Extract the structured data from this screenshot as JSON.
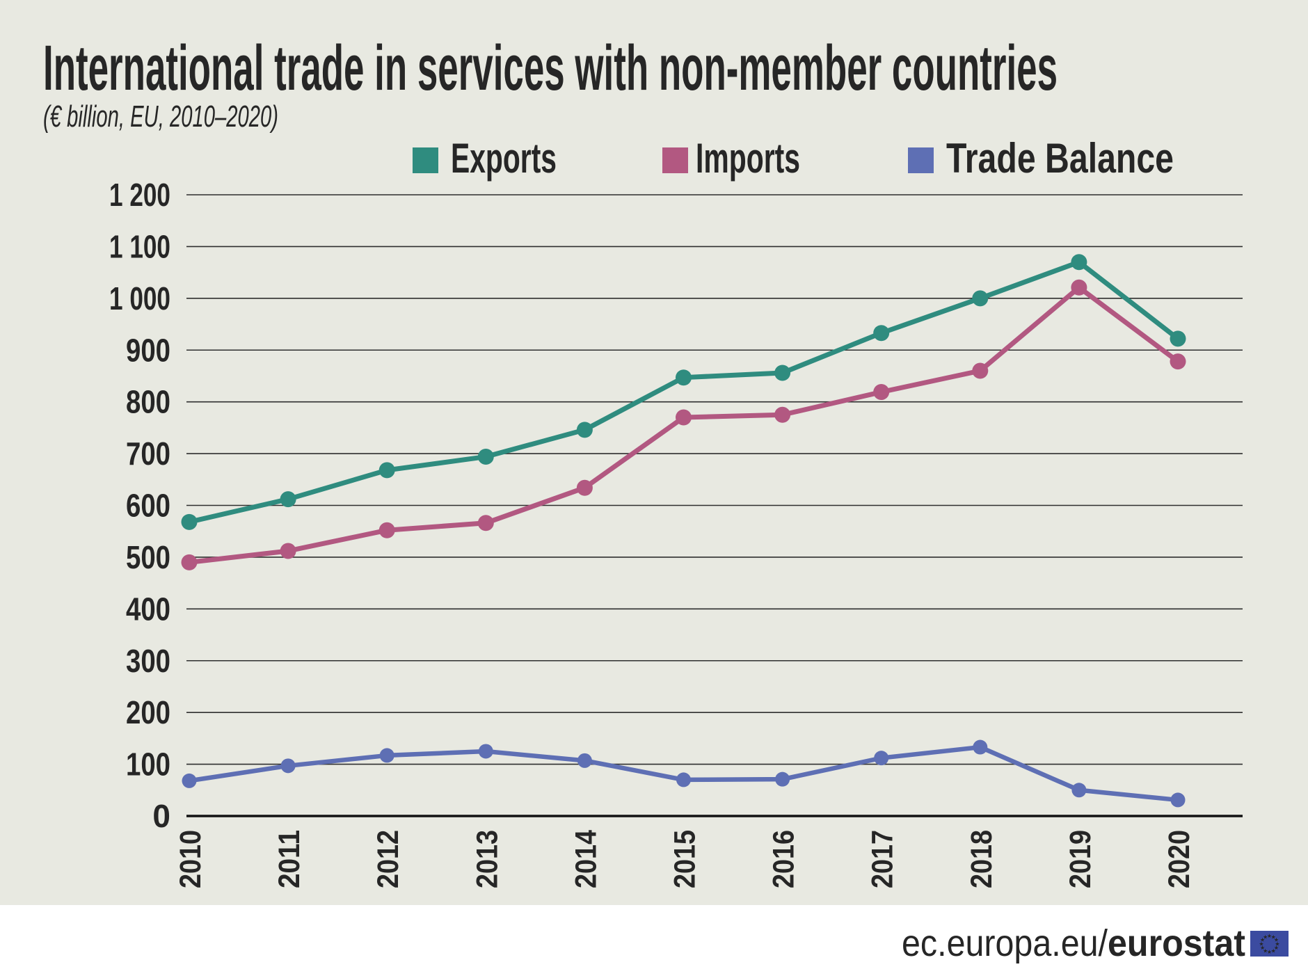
{
  "header": {
    "title": "International trade in services with non-member countries",
    "subtitle": "(€ billion, EU, 2010–2020)"
  },
  "footer": {
    "url_regular": "ec.europa.eu/",
    "url_bold": "eurostat",
    "flag_icon": "eu-flag-icon"
  },
  "colors": {
    "background": "#e8e9e1",
    "footer_band": "#ffffff",
    "title_text": "#262626",
    "grid": "#2e2e2e",
    "zero_axis": "#111111",
    "exports": "#2f8c7f",
    "imports": "#b25881",
    "trade_balance": "#5e6fb4",
    "footer_text": "#6f6f6f",
    "flag_blue": "#3b4ba0",
    "flag_stars": "#d8d04f"
  },
  "chart_data": {
    "type": "line",
    "title": "International trade in services with non-member countries",
    "subtitle": "(€ billion, EU, 2010–2020)",
    "xlabel": "",
    "ylabel": "",
    "x": [
      "2010",
      "2011",
      "2012",
      "2013",
      "2014",
      "2015",
      "2016",
      "2017",
      "2018",
      "2019",
      "2020"
    ],
    "series": [
      {
        "name": "Exports",
        "color_key": "exports",
        "values": [
          568,
          612,
          668,
          694,
          746,
          847,
          856,
          933,
          1000,
          1070,
          922
        ]
      },
      {
        "name": "Imports",
        "color_key": "imports",
        "values": [
          490,
          512,
          552,
          566,
          634,
          770,
          775,
          819,
          860,
          1021,
          878
        ]
      },
      {
        "name": "Trade Balance",
        "color_key": "trade_balance",
        "values": [
          68,
          97,
          117,
          125,
          107,
          70,
          71,
          112,
          133,
          50,
          31
        ]
      }
    ],
    "ylim": [
      0,
      1200
    ],
    "ytick_step": 100,
    "ytick_labels": [
      "0",
      "100",
      "200",
      "300",
      "400",
      "500",
      "600",
      "700",
      "800",
      "900",
      "1 000",
      "1 100",
      "1 200"
    ],
    "grid": true,
    "legend_position": "top"
  }
}
